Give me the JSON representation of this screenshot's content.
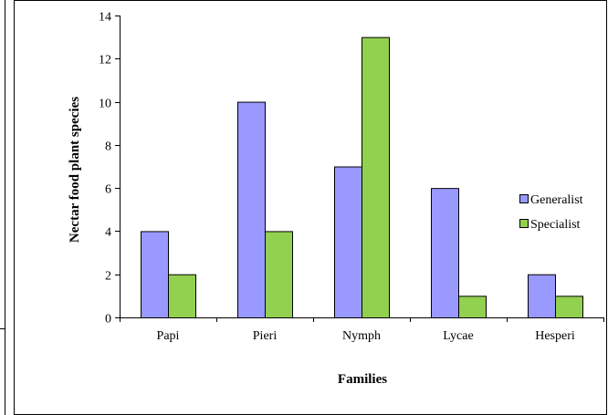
{
  "chart_data": {
    "type": "bar",
    "categories": [
      "Papi",
      "Pieri",
      "Nymph",
      "Lycae",
      "Hesperi"
    ],
    "series": [
      {
        "name": "Generalist",
        "values": [
          4,
          10,
          7,
          6,
          2
        ],
        "color": "#9999ff"
      },
      {
        "name": "Specialist",
        "values": [
          2,
          4,
          13,
          1,
          1
        ],
        "color": "#92d050"
      }
    ],
    "title": "",
    "xlabel": "Families",
    "ylabel": "Nectar food plant species",
    "ylim": [
      0,
      14
    ],
    "yticks": [
      0,
      2,
      4,
      6,
      8,
      10,
      12,
      14
    ],
    "grid": false,
    "legend_position": "right"
  }
}
